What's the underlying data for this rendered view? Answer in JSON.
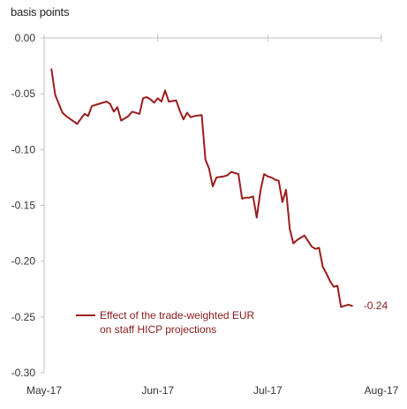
{
  "chart_data": {
    "type": "line",
    "ylabel": "basis points",
    "ylim": [
      -0.3,
      0.0
    ],
    "yticks": [
      "0.00",
      "-0.05",
      "-0.10",
      "-0.15",
      "-0.20",
      "-0.25",
      "-0.30"
    ],
    "ytick_values": [
      0.0,
      -0.05,
      -0.1,
      -0.15,
      -0.2,
      -0.25,
      -0.3
    ],
    "xlim": [
      0,
      92
    ],
    "xticks": [
      "May-17",
      "Jun-17",
      "Jul-17",
      "Aug-17"
    ],
    "xtick_values": [
      0,
      31,
      61,
      92
    ],
    "legend": [
      "Effect of the trade-weighted EUR",
      "on staff HICP projections"
    ],
    "end_label": "-0.24",
    "colors": {
      "series": "#9b1c1c",
      "axis": "#bfbfbf",
      "text": "#333333"
    },
    "series": [
      {
        "name": "Effect of the trade-weighted EUR on staff HICP projections",
        "x": [
          2,
          3,
          5,
          6,
          9,
          11,
          12,
          13,
          15,
          16,
          17,
          18,
          19,
          20,
          21,
          23,
          24,
          26,
          27,
          28,
          29,
          30,
          31,
          32,
          33,
          34,
          36,
          37,
          38,
          39,
          40,
          41,
          43,
          44,
          45,
          46,
          47,
          49,
          50,
          51,
          53,
          54,
          55,
          56,
          57,
          58,
          59,
          60,
          61,
          62,
          63,
          64,
          65,
          66,
          67,
          68,
          69,
          70,
          71,
          72,
          73,
          74,
          75,
          76,
          77,
          78,
          79,
          80,
          81,
          82,
          83,
          84
        ],
        "values": [
          -0.028,
          -0.051,
          -0.067,
          -0.07,
          -0.077,
          -0.068,
          -0.07,
          -0.061,
          -0.059,
          -0.058,
          -0.057,
          -0.059,
          -0.066,
          -0.062,
          -0.074,
          -0.07,
          -0.066,
          -0.068,
          -0.054,
          -0.053,
          -0.055,
          -0.058,
          -0.054,
          -0.057,
          -0.047,
          -0.057,
          -0.056,
          -0.065,
          -0.073,
          -0.067,
          -0.071,
          -0.07,
          -0.069,
          -0.109,
          -0.117,
          -0.133,
          -0.125,
          -0.124,
          -0.123,
          -0.12,
          -0.122,
          -0.144,
          -0.143,
          -0.143,
          -0.142,
          -0.161,
          -0.137,
          -0.122,
          -0.124,
          -0.125,
          -0.127,
          -0.128,
          -0.147,
          -0.136,
          -0.171,
          -0.184,
          -0.181,
          -0.179,
          -0.177,
          -0.182,
          -0.187,
          -0.189,
          -0.188,
          -0.205,
          -0.211,
          -0.218,
          -0.223,
          -0.222,
          -0.241,
          -0.24,
          -0.239,
          -0.24
        ]
      }
    ]
  }
}
